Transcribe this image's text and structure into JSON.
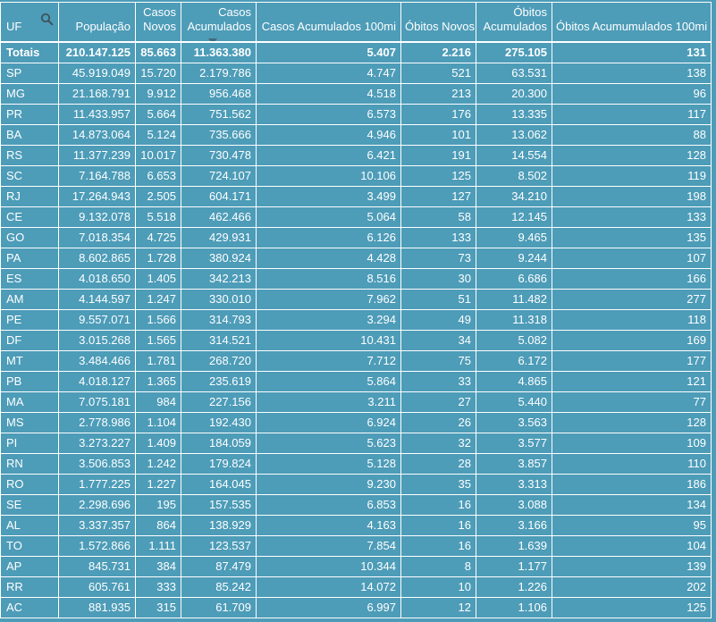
{
  "table": {
    "columns": [
      {
        "label": "UF"
      },
      {
        "label": "População"
      },
      {
        "label": "Casos Novos"
      },
      {
        "label": "Casos Acumulados"
      },
      {
        "label": "Casos Acumulados 100mi"
      },
      {
        "label": "Óbitos Novos"
      },
      {
        "label": "Óbitos Acumulados"
      },
      {
        "label": "Óbitos Acumumulados 100mi"
      }
    ],
    "sort": {
      "column": "Casos Acumulados",
      "direction": "desc"
    },
    "totals_row": [
      "Totais",
      "210.147.125",
      "85.663",
      "11.363.380",
      "5.407",
      "2.216",
      "275.105",
      "131"
    ],
    "rows": [
      [
        "SP",
        "45.919.049",
        "15.720",
        "2.179.786",
        "4.747",
        "521",
        "63.531",
        "138"
      ],
      [
        "MG",
        "21.168.791",
        "9.912",
        "956.468",
        "4.518",
        "213",
        "20.300",
        "96"
      ],
      [
        "PR",
        "11.433.957",
        "5.664",
        "751.562",
        "6.573",
        "176",
        "13.335",
        "117"
      ],
      [
        "BA",
        "14.873.064",
        "5.124",
        "735.666",
        "4.946",
        "101",
        "13.062",
        "88"
      ],
      [
        "RS",
        "11.377.239",
        "10.017",
        "730.478",
        "6.421",
        "191",
        "14.554",
        "128"
      ],
      [
        "SC",
        "7.164.788",
        "6.653",
        "724.107",
        "10.106",
        "125",
        "8.502",
        "119"
      ],
      [
        "RJ",
        "17.264.943",
        "2.505",
        "604.171",
        "3.499",
        "127",
        "34.210",
        "198"
      ],
      [
        "CE",
        "9.132.078",
        "5.518",
        "462.466",
        "5.064",
        "58",
        "12.145",
        "133"
      ],
      [
        "GO",
        "7.018.354",
        "4.725",
        "429.931",
        "6.126",
        "133",
        "9.465",
        "135"
      ],
      [
        "PA",
        "8.602.865",
        "1.728",
        "380.924",
        "4.428",
        "73",
        "9.244",
        "107"
      ],
      [
        "ES",
        "4.018.650",
        "1.405",
        "342.213",
        "8.516",
        "30",
        "6.686",
        "166"
      ],
      [
        "AM",
        "4.144.597",
        "1.247",
        "330.010",
        "7.962",
        "51",
        "11.482",
        "277"
      ],
      [
        "PE",
        "9.557.071",
        "1.566",
        "314.793",
        "3.294",
        "49",
        "11.318",
        "118"
      ],
      [
        "DF",
        "3.015.268",
        "1.565",
        "314.521",
        "10.431",
        "34",
        "5.082",
        "169"
      ],
      [
        "MT",
        "3.484.466",
        "1.781",
        "268.720",
        "7.712",
        "75",
        "6.172",
        "177"
      ],
      [
        "PB",
        "4.018.127",
        "1.365",
        "235.619",
        "5.864",
        "33",
        "4.865",
        "121"
      ],
      [
        "MA",
        "7.075.181",
        "984",
        "227.156",
        "3.211",
        "27",
        "5.440",
        "77"
      ],
      [
        "MS",
        "2.778.986",
        "1.104",
        "192.430",
        "6.924",
        "26",
        "3.563",
        "128"
      ],
      [
        "PI",
        "3.273.227",
        "1.409",
        "184.059",
        "5.623",
        "32",
        "3.577",
        "109"
      ],
      [
        "RN",
        "3.506.853",
        "1.242",
        "179.824",
        "5.128",
        "28",
        "3.857",
        "110"
      ],
      [
        "RO",
        "1.777.225",
        "1.227",
        "164.045",
        "9.230",
        "35",
        "3.313",
        "186"
      ],
      [
        "SE",
        "2.298.696",
        "195",
        "157.535",
        "6.853",
        "16",
        "3.088",
        "134"
      ],
      [
        "AL",
        "3.337.357",
        "864",
        "138.929",
        "4.163",
        "16",
        "3.166",
        "95"
      ],
      [
        "TO",
        "1.572.866",
        "1.111",
        "123.537",
        "7.854",
        "16",
        "1.639",
        "104"
      ],
      [
        "AP",
        "845.731",
        "384",
        "87.479",
        "10.344",
        "8",
        "1.177",
        "139"
      ],
      [
        "RR",
        "605.761",
        "333",
        "85.242",
        "14.072",
        "10",
        "1.226",
        "202"
      ],
      [
        "AC",
        "881.935",
        "315",
        "61.709",
        "6.997",
        "12",
        "1.106",
        "125"
      ]
    ]
  },
  "icons": {
    "search": "search-icon",
    "sort": "sort-desc-icon"
  },
  "colors": {
    "background": "#4D9CB8",
    "text": "#FFFFFF",
    "grid": "#FFFFFF",
    "icon": "#3E4F57"
  }
}
